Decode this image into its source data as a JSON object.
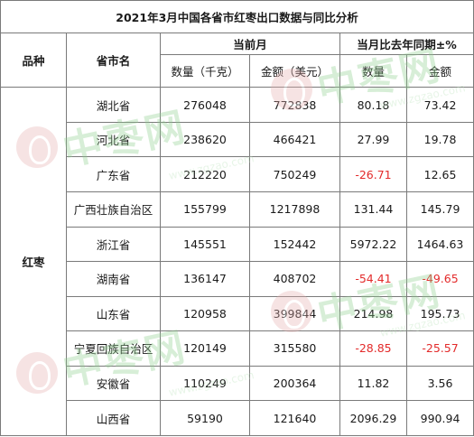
{
  "title": "2021年3月中国各省市红枣出口数据与同比分析",
  "headers": {
    "category": "品种",
    "province": "省市名",
    "current_month": "当前月",
    "yoy": "当月比去年同期±%",
    "qty": "数量（千克）",
    "amount": "金额（美元）",
    "yoy_qty": "数量",
    "yoy_amount": "金额"
  },
  "category_value": "红枣",
  "rows": [
    {
      "province": "湖北省",
      "qty": "276048",
      "amount": "772838",
      "yoy_qty": "80.18",
      "yoy_amount": "73.42"
    },
    {
      "province": "河北省",
      "qty": "238620",
      "amount": "466421",
      "yoy_qty": "27.99",
      "yoy_amount": "19.78"
    },
    {
      "province": "广东省",
      "qty": "212220",
      "amount": "750249",
      "yoy_qty": "-26.71",
      "yoy_amount": "12.65"
    },
    {
      "province": "广西壮族自治区",
      "qty": "155799",
      "amount": "1217898",
      "yoy_qty": "131.44",
      "yoy_amount": "145.79"
    },
    {
      "province": "浙江省",
      "qty": "145551",
      "amount": "152442",
      "yoy_qty": "5972.22",
      "yoy_amount": "1464.63"
    },
    {
      "province": "湖南省",
      "qty": "136147",
      "amount": "408702",
      "yoy_qty": "-54.41",
      "yoy_amount": "-49.65"
    },
    {
      "province": "山东省",
      "qty": "120958",
      "amount": "399844",
      "yoy_qty": "214.98",
      "yoy_amount": "195.73"
    },
    {
      "province": "宁夏回族自治区",
      "qty": "120149",
      "amount": "315580",
      "yoy_qty": "-28.85",
      "yoy_amount": "-25.57"
    },
    {
      "province": "安徽省",
      "qty": "110249",
      "amount": "200364",
      "yoy_qty": "11.82",
      "yoy_amount": "3.56"
    },
    {
      "province": "山西省",
      "qty": "59190",
      "amount": "121640",
      "yoy_qty": "2096.29",
      "yoy_amount": "990.94"
    }
  ],
  "watermark": {
    "text": "中枣网",
    "url": "www.zgzao.com"
  },
  "colors": {
    "negative": "#e32b2b",
    "border": "#7a7a7a",
    "watermark_green": "#8fcf8f",
    "watermark_seal": "#e8b1b1"
  }
}
